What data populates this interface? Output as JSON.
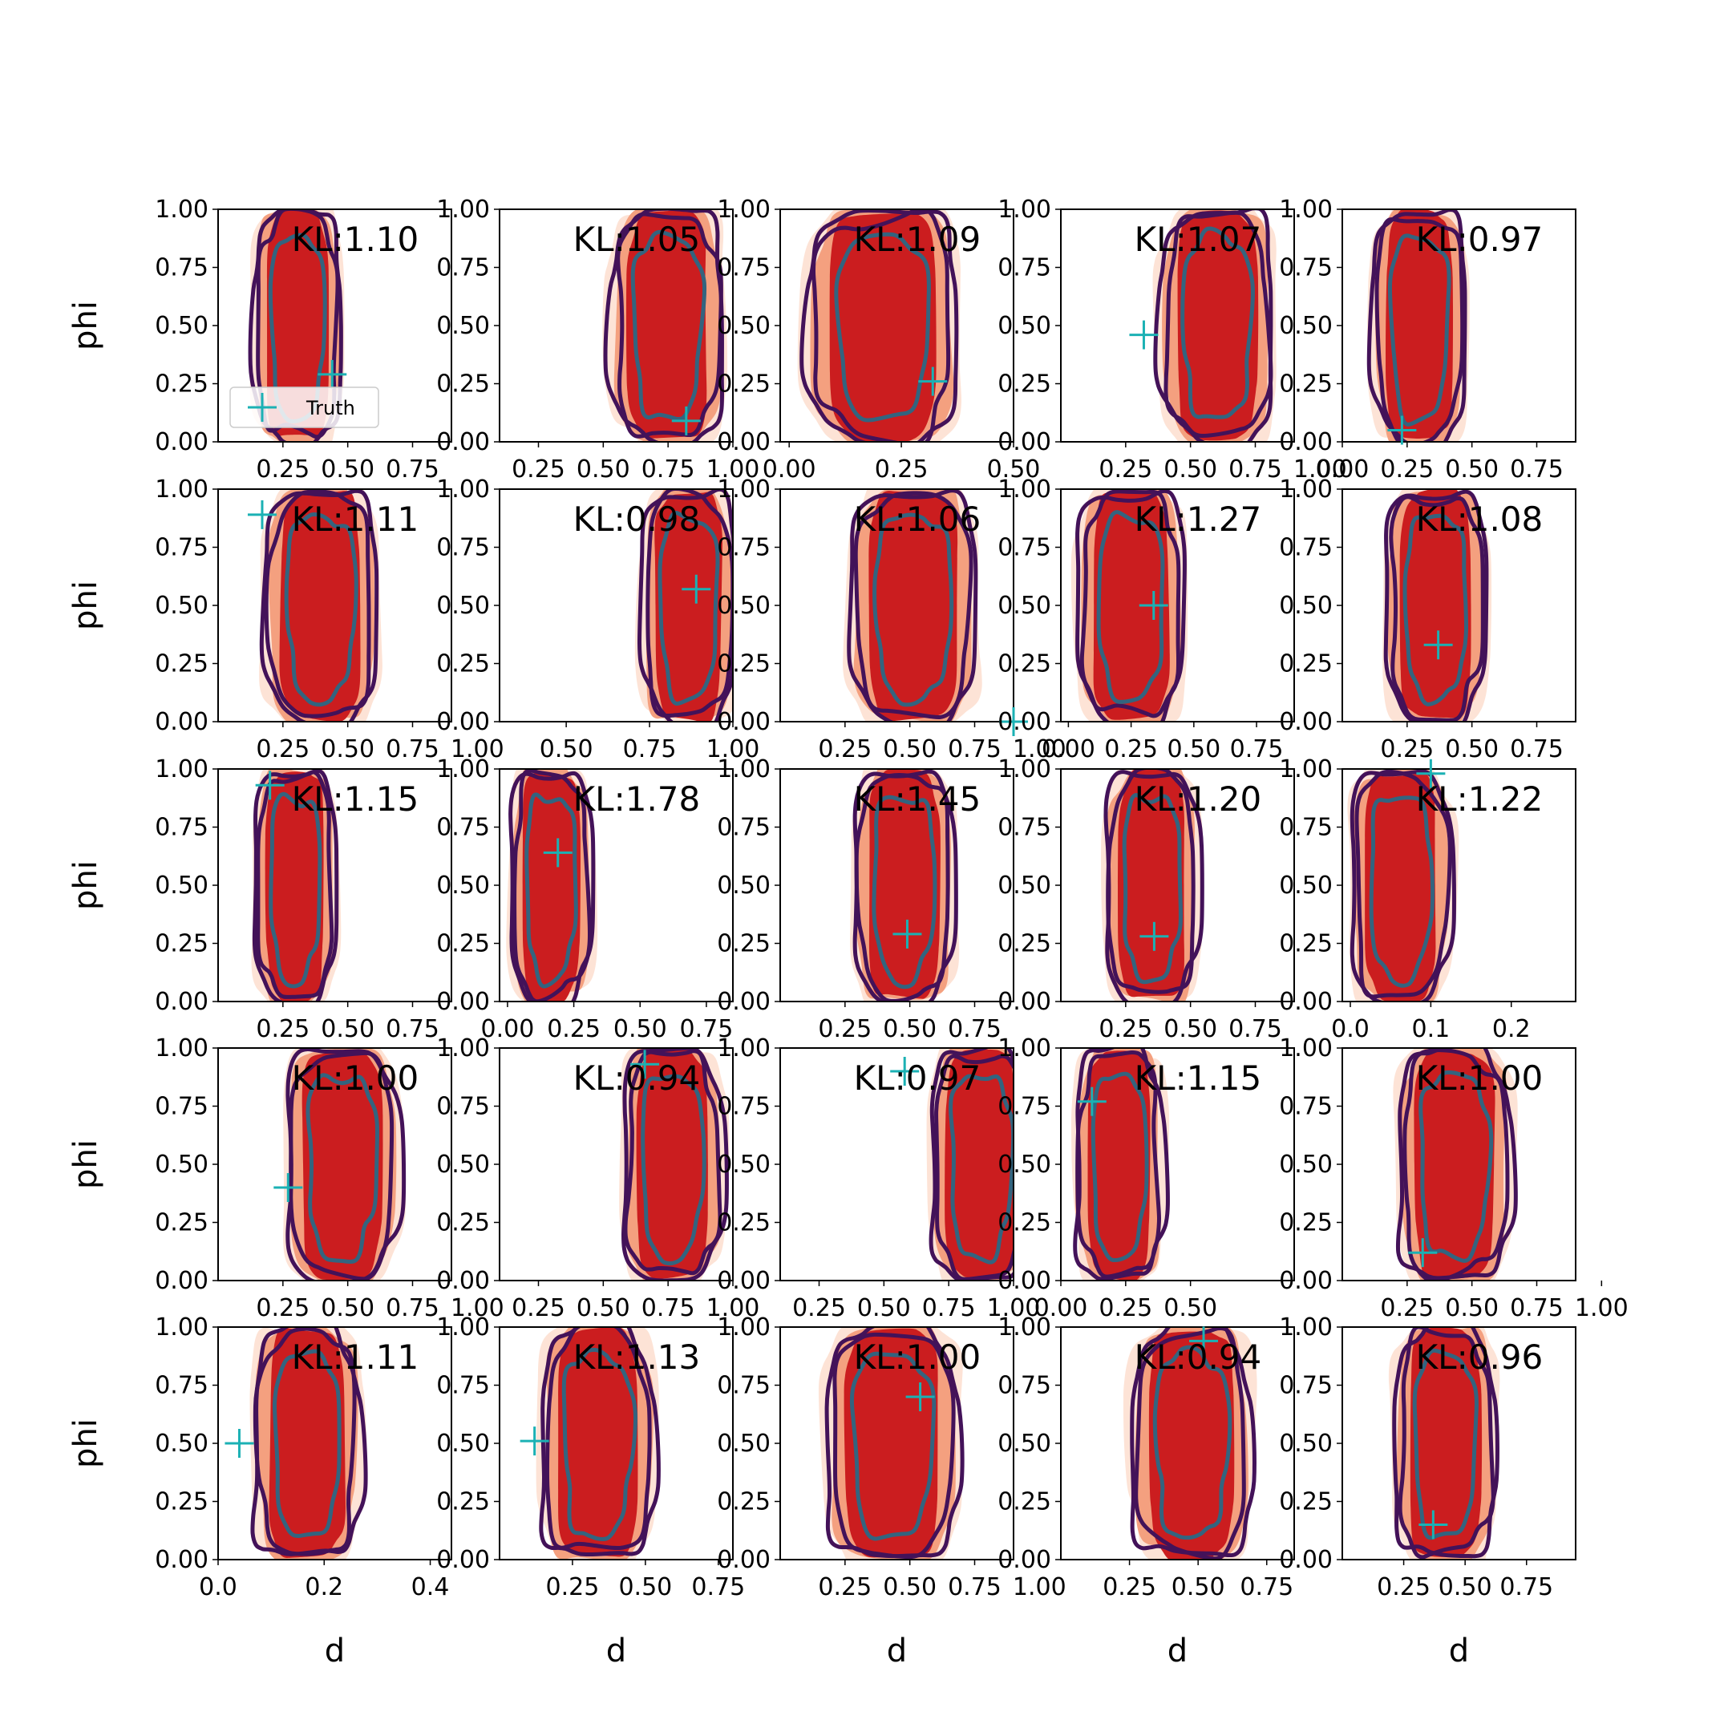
{
  "chart_data": {
    "type": "contour",
    "layout": "5x5 grid of subplots",
    "xlabel": "d",
    "ylabel": "phi",
    "ylim": [
      0,
      1
    ],
    "y_ticks": [
      "0.00",
      "0.25",
      "0.50",
      "0.75",
      "1.00"
    ],
    "legend": {
      "label": "Truth",
      "placement": "lower-left",
      "subplot": 0
    },
    "colors": {
      "fill_outer": "#fde3d6",
      "fill_mid": "#f4a07f",
      "fill_inner": "#cb1d1f",
      "contour_outer": "#431259",
      "contour_inner": "#33647f",
      "truth_marker": "#1bb1b4"
    },
    "panels": [
      {
        "kl": "KL:1.10",
        "xlim": [
          0,
          0.9
        ],
        "xticks": [
          0.25,
          0.5,
          0.75
        ],
        "xticklabels": [
          "0.25",
          "0.50",
          "0.75"
        ],
        "truth": [
          0.44,
          0.29
        ]
      },
      {
        "kl": "KL:1.05",
        "xlim": [
          0.1,
          1.0
        ],
        "xticks": [
          0.25,
          0.5,
          0.75,
          1.0
        ],
        "xticklabels": [
          "0.25",
          "0.50",
          "0.75",
          "1.00"
        ],
        "truth": [
          0.82,
          0.09
        ]
      },
      {
        "kl": "KL:1.09",
        "xlim": [
          -0.02,
          0.5
        ],
        "xticks": [
          0.0,
          0.25,
          0.5
        ],
        "xticklabels": [
          "0.00",
          "0.25",
          "0.50"
        ],
        "truth": [
          0.32,
          0.26
        ]
      },
      {
        "kl": "KL:1.07",
        "xlim": [
          0.0,
          0.9
        ],
        "xticks": [
          0.25,
          0.5,
          0.75,
          1.0
        ],
        "xticklabels": [
          "0.25",
          "0.50",
          "0.75",
          "1.00"
        ],
        "truth": [
          0.32,
          0.46
        ]
      },
      {
        "kl": "KL:0.97",
        "xlim": [
          0.0,
          0.9
        ],
        "xticks": [
          0.0,
          0.25,
          0.5,
          0.75
        ],
        "xticklabels": [
          "0.00",
          "0.25",
          "0.50",
          "0.75"
        ],
        "truth": [
          0.23,
          0.05
        ]
      },
      {
        "kl": "KL:1.11",
        "xlim": [
          0.0,
          0.9
        ],
        "xticks": [
          0.25,
          0.5,
          0.75,
          1.0
        ],
        "xticklabels": [
          "0.25",
          "0.50",
          "0.75",
          "1.00"
        ],
        "truth": [
          0.17,
          0.89
        ]
      },
      {
        "kl": "KL:0.98",
        "xlim": [
          0.3,
          1.0
        ],
        "xticks": [
          0.5,
          0.75,
          1.0
        ],
        "xticklabels": [
          "0.50",
          "0.75",
          "1.00"
        ],
        "truth": [
          0.89,
          0.57
        ]
      },
      {
        "kl": "KL:1.06",
        "xlim": [
          0.0,
          0.9
        ],
        "xticks": [
          0.25,
          0.5,
          0.75,
          1.0
        ],
        "xticklabels": [
          "0.25",
          "0.50",
          "0.75",
          "1.00"
        ],
        "truth": [
          0.9,
          0.0
        ]
      },
      {
        "kl": "KL:1.27",
        "xlim": [
          -0.03,
          0.9
        ],
        "xticks": [
          0.0,
          0.25,
          0.5,
          0.75
        ],
        "xticklabels": [
          "0.00",
          "0.25",
          "0.50",
          "0.75"
        ],
        "truth": [
          0.34,
          0.5
        ]
      },
      {
        "kl": "KL:1.08",
        "xlim": [
          0.0,
          0.9
        ],
        "xticks": [
          0.25,
          0.5,
          0.75
        ],
        "xticklabels": [
          "0.25",
          "0.50",
          "0.75"
        ],
        "truth": [
          0.37,
          0.33
        ]
      },
      {
        "kl": "KL:1.15",
        "xlim": [
          0.0,
          0.9
        ],
        "xticks": [
          0.25,
          0.5,
          0.75
        ],
        "xticklabels": [
          "0.25",
          "0.50",
          "0.75"
        ],
        "truth": [
          0.2,
          0.93
        ]
      },
      {
        "kl": "KL:1.78",
        "xlim": [
          -0.03,
          0.85
        ],
        "xticks": [
          0.0,
          0.25,
          0.5,
          0.75
        ],
        "xticklabels": [
          "0.00",
          "0.25",
          "0.50",
          "0.75"
        ],
        "truth": [
          0.19,
          0.64
        ]
      },
      {
        "kl": "KL:1.45",
        "xlim": [
          0.0,
          0.9
        ],
        "xticks": [
          0.25,
          0.5,
          0.75
        ],
        "xticklabels": [
          "0.25",
          "0.50",
          "0.75"
        ],
        "truth": [
          0.49,
          0.29
        ]
      },
      {
        "kl": "KL:1.20",
        "xlim": [
          0.0,
          0.9
        ],
        "xticks": [
          0.25,
          0.5,
          0.75
        ],
        "xticklabels": [
          "0.25",
          "0.50",
          "0.75"
        ],
        "truth": [
          0.36,
          0.28
        ]
      },
      {
        "kl": "KL:1.22",
        "xlim": [
          -0.01,
          0.28
        ],
        "xticks": [
          0.0,
          0.1,
          0.2
        ],
        "xticklabels": [
          "0.0",
          "0.1",
          "0.2"
        ],
        "truth": [
          0.1,
          0.98
        ]
      },
      {
        "kl": "KL:1.00",
        "xlim": [
          0.0,
          0.9
        ],
        "xticks": [
          0.25,
          0.5,
          0.75,
          1.0
        ],
        "xticklabels": [
          "0.25",
          "0.50",
          "0.75",
          "1.00"
        ],
        "truth": [
          0.27,
          0.4
        ]
      },
      {
        "kl": "KL:0.94",
        "xlim": [
          0.1,
          1.0
        ],
        "xticks": [
          0.25,
          0.5,
          0.75,
          1.0
        ],
        "xticklabels": [
          "0.25",
          "0.50",
          "0.75",
          "1.00"
        ],
        "truth": [
          0.66,
          0.93
        ]
      },
      {
        "kl": "KL:0.97",
        "xlim": [
          0.1,
          1.0
        ],
        "xticks": [
          0.25,
          0.5,
          0.75,
          1.0
        ],
        "xticklabels": [
          "0.25",
          "0.50",
          "0.75",
          "1.00"
        ],
        "truth": [
          0.58,
          0.9
        ]
      },
      {
        "kl": "KL:1.15",
        "xlim": [
          0.0,
          0.9
        ],
        "xticks": [
          0.0,
          0.25,
          0.5
        ],
        "xticklabels": [
          "0.00",
          "0.25",
          "0.50"
        ],
        "truth": [
          0.12,
          0.77
        ]
      },
      {
        "kl": "KL:1.00",
        "xlim": [
          0.0,
          0.9
        ],
        "xticks": [
          0.25,
          0.5,
          0.75,
          1.0
        ],
        "xticklabels": [
          "0.25",
          "0.50",
          "0.75",
          "1.00"
        ],
        "truth": [
          0.31,
          0.12
        ]
      },
      {
        "kl": "KL:1.11",
        "xlim": [
          0.0,
          0.44
        ],
        "xticks": [
          0.0,
          0.2,
          0.4
        ],
        "xticklabels": [
          "0.0",
          "0.2",
          "0.4"
        ],
        "truth": [
          0.04,
          0.5
        ]
      },
      {
        "kl": "KL:1.13",
        "xlim": [
          0.0,
          0.8
        ],
        "xticks": [
          0.25,
          0.5,
          0.75
        ],
        "xticklabels": [
          "0.25",
          "0.50",
          "0.75"
        ],
        "truth": [
          0.12,
          0.51
        ]
      },
      {
        "kl": "KL:1.00",
        "xlim": [
          0.0,
          0.9
        ],
        "xticks": [
          0.25,
          0.5,
          0.75,
          1.0
        ],
        "xticklabels": [
          "0.25",
          "0.50",
          "0.75",
          "1.00"
        ],
        "truth": [
          0.54,
          0.7
        ]
      },
      {
        "kl": "KL:0.94",
        "xlim": [
          0.0,
          0.85
        ],
        "xticks": [
          0.25,
          0.5,
          0.75
        ],
        "xticklabels": [
          "0.25",
          "0.50",
          "0.75"
        ],
        "truth": [
          0.52,
          0.94
        ]
      },
      {
        "kl": "KL:0.96",
        "xlim": [
          0.0,
          0.95
        ],
        "xticks": [
          0.25,
          0.5,
          0.75
        ],
        "xticklabels": [
          "0.25",
          "0.50",
          "0.75"
        ],
        "truth": [
          0.37,
          0.15
        ]
      }
    ]
  }
}
